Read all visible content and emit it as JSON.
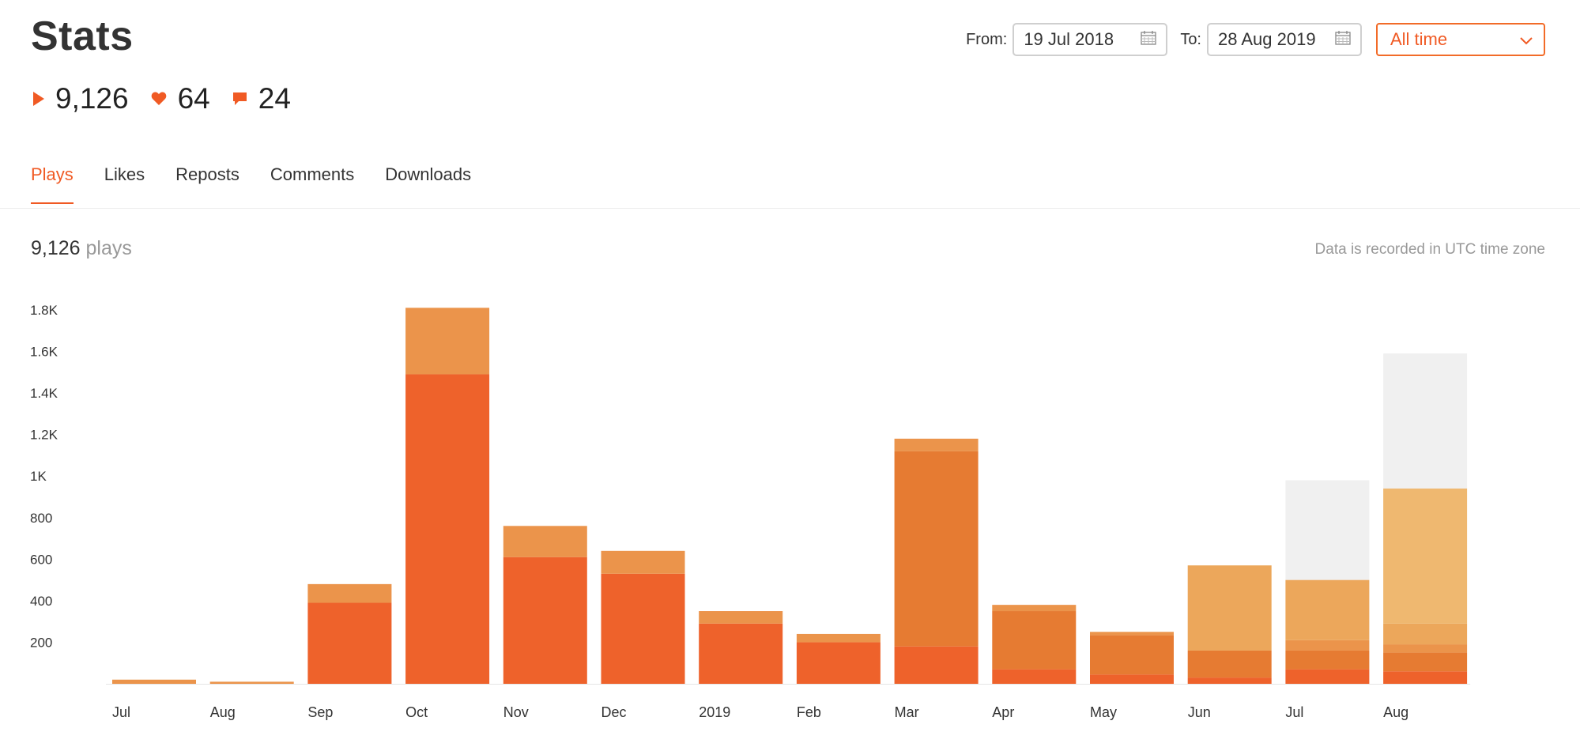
{
  "title": "Stats",
  "totals": {
    "plays": "9,126",
    "likes": "64",
    "comments": "24"
  },
  "date_range": {
    "from_label": "From:",
    "from_value": "19 Jul 2018",
    "to_label": "To:",
    "to_value": "28 Aug 2019",
    "period": "All time"
  },
  "tabs": [
    "Plays",
    "Likes",
    "Reposts",
    "Comments",
    "Downloads"
  ],
  "active_tab": "Plays",
  "summary": {
    "count": "9,126",
    "unit": "plays",
    "timezone_note": "Data is recorded in UTC time zone"
  },
  "colors": {
    "accent": "#f05a24",
    "layers": [
      "#ee622b",
      "#e67b32",
      "#eb944b",
      "#eca75b",
      "#efb870",
      "#f0f0f0"
    ]
  },
  "icons": {
    "plays": "play-icon",
    "likes": "heart-icon",
    "comments": "comment-icon",
    "date": "calendar-icon",
    "select": "chevron-down-icon"
  },
  "chart_data": {
    "type": "bar",
    "stacked": true,
    "categories": [
      "Jul",
      "Aug",
      "Sep",
      "Oct",
      "Nov",
      "Dec",
      "2019",
      "Feb",
      "Mar",
      "Apr",
      "May",
      "Jun",
      "Jul",
      "Aug"
    ],
    "ylim": [
      0,
      1800
    ],
    "yticks": [
      200,
      400,
      600,
      800,
      1000,
      1200,
      1400,
      1600,
      1800
    ],
    "ytick_labels": [
      "200",
      "400",
      "600",
      "800",
      "1K",
      "1.2K",
      "1.4K",
      "1.6K",
      "1.8K"
    ],
    "grid": false,
    "layers": [
      [
        0,
        0,
        390,
        1490,
        610,
        530,
        290,
        200,
        180,
        70,
        45,
        30,
        70,
        60
      ],
      [
        0,
        0,
        0,
        0,
        0,
        0,
        0,
        0,
        940,
        280,
        190,
        130,
        90,
        90
      ],
      [
        20,
        10,
        90,
        320,
        150,
        110,
        60,
        40,
        60,
        30,
        15,
        0,
        50,
        40
      ],
      [
        0,
        0,
        0,
        0,
        0,
        0,
        0,
        0,
        0,
        0,
        0,
        410,
        290,
        100
      ],
      [
        0,
        0,
        0,
        0,
        0,
        0,
        0,
        0,
        0,
        0,
        0,
        0,
        0,
        650
      ],
      [
        0,
        0,
        0,
        0,
        0,
        0,
        0,
        0,
        0,
        0,
        0,
        0,
        480,
        650
      ]
    ]
  }
}
